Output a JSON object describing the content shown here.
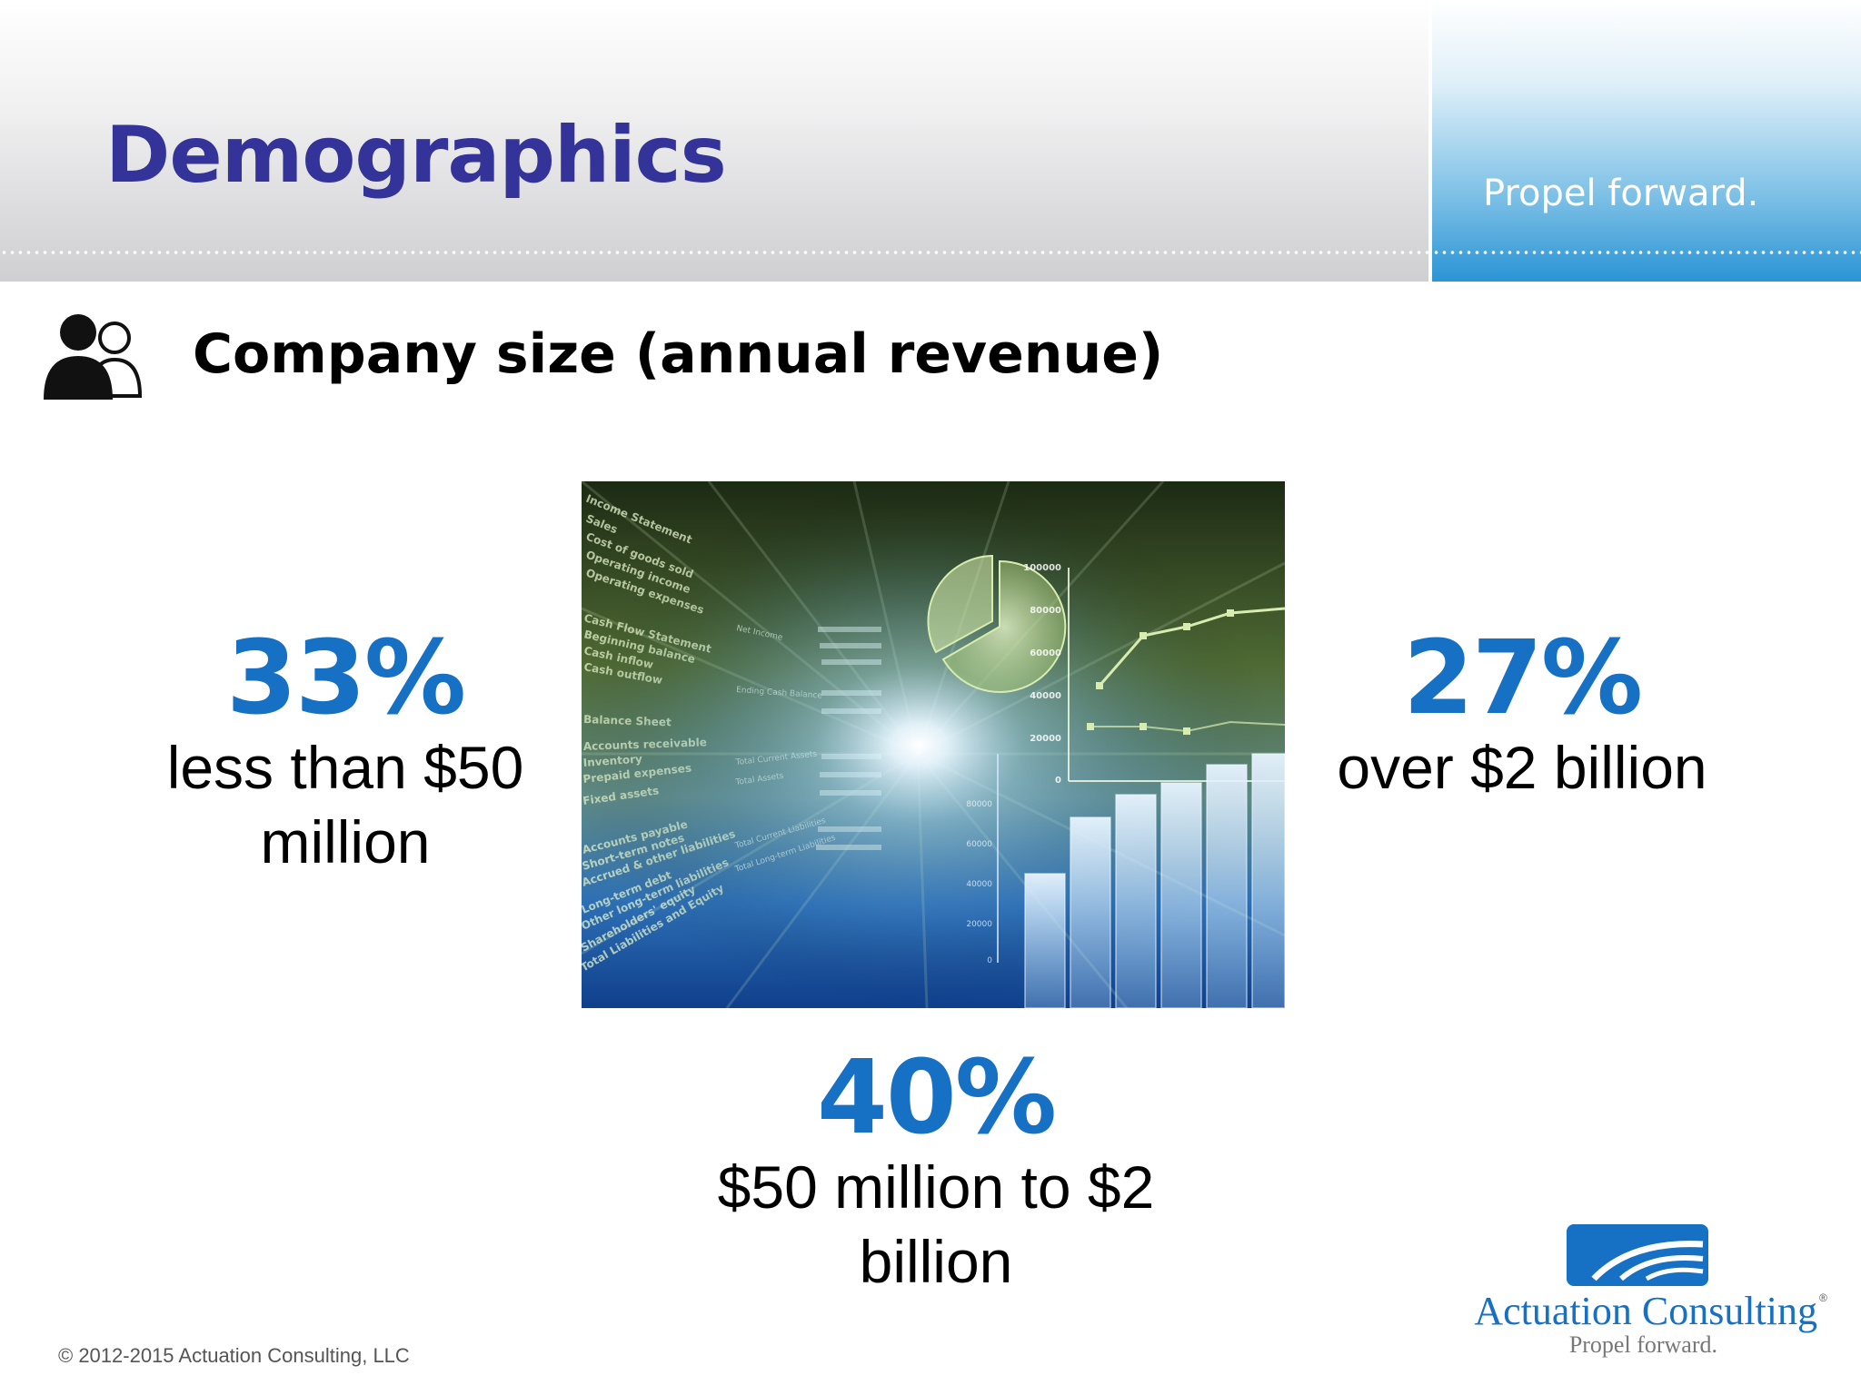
{
  "header": {
    "title": "Demographics",
    "tagline": "Propel forward."
  },
  "section": {
    "icon": "people-icon",
    "subtitle": "Company size (annual revenue)"
  },
  "stats": [
    {
      "percent": "33%",
      "label": "less than $50 million"
    },
    {
      "percent": "27%",
      "label": "over $2 billion"
    },
    {
      "percent": "40%",
      "label": "$50 million to $2 billion"
    }
  ],
  "image": {
    "statement_lines": [
      "Income Statement",
      "Sales",
      "Cost of goods sold",
      "Operating income",
      "Operating expenses",
      "Cash Flow Statement",
      "Beginning balance",
      "Cash inflow",
      "Cash outflow",
      "Balance Sheet",
      "Accounts receivable",
      "Inventory",
      "Prepaid expenses",
      "Fixed assets",
      "Accounts payable",
      "Short-term notes",
      "Accrued & other liabilities",
      "Long-term debt",
      "Other long-term liabilities",
      "Shareholders' equity",
      "Total Liabilities and Equity"
    ],
    "column_labels": [
      "Net Income",
      "Ending Cash Balance",
      "Total Current Assets",
      "Total Assets",
      "Total Current Liabilities",
      "Total Long-term Liabilities"
    ],
    "axis_ticks_top": [
      "100000",
      "80000",
      "60000",
      "40000",
      "20000",
      "0"
    ],
    "axis_ticks_bottom": [
      "80000",
      "60000",
      "40000",
      "20000",
      "0"
    ]
  },
  "logo": {
    "name": "Actuation Consulting",
    "tagline": "Propel forward.",
    "registered": "®"
  },
  "footer": {
    "copyright": "© 2012-2015 Actuation Consulting, LLC"
  },
  "colors": {
    "title": "#33339a",
    "accent": "#1670c4",
    "header_blue": "#2a94d4"
  }
}
